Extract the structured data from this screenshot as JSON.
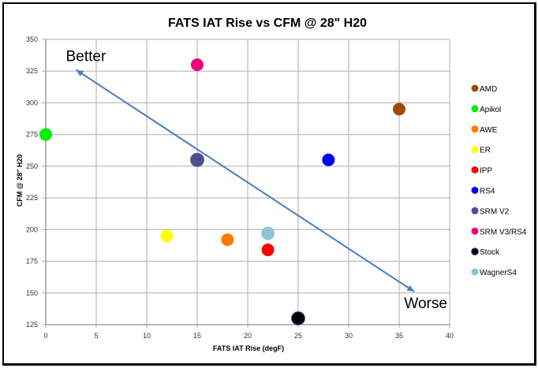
{
  "chart_data": {
    "type": "scatter",
    "title": "FATS IAT Rise vs CFM @ 28\" H20",
    "xlabel": "FATS IAT Rise (degF)",
    "ylabel": "CFM @ 28\" H20",
    "xlim": [
      0,
      40
    ],
    "ylim": [
      125,
      350
    ],
    "xticks": [
      "0",
      "5",
      "10",
      "15",
      "20",
      "25",
      "30",
      "35",
      "40"
    ],
    "yticks": [
      "125",
      "150",
      "175",
      "200",
      "225",
      "250",
      "275",
      "300",
      "325",
      "350"
    ],
    "grid": true,
    "legend_position": "right",
    "series": [
      {
        "name": "AMD",
        "color": "#9c4a06",
        "x": 35,
        "y": 295
      },
      {
        "name": "Apikol",
        "color": "#00ee00",
        "x": 0,
        "y": 275
      },
      {
        "name": "AWE",
        "color": "#ff7a00",
        "x": 18,
        "y": 192
      },
      {
        "name": "ER",
        "color": "#ffff00",
        "x": 12,
        "y": 195
      },
      {
        "name": "IPP",
        "color": "#ff0000",
        "x": 22,
        "y": 184
      },
      {
        "name": "RS4",
        "color": "#0000ff",
        "x": 28,
        "y": 255
      },
      {
        "name": "SRM V2",
        "color": "#4d4d8f",
        "x": 15,
        "y": 255
      },
      {
        "name": "SRM V3/RS4",
        "color": "#ee0077",
        "x": 15,
        "y": 330
      },
      {
        "name": "Stock",
        "color": "#000000",
        "x": 25,
        "y": 130
      },
      {
        "name": "WagnerS4",
        "color": "#92c3d3",
        "x": 22,
        "y": 197
      }
    ],
    "annotations": [
      {
        "text": "Better",
        "x": 2,
        "y": 333
      },
      {
        "text": "Worse",
        "x": 35.5,
        "y": 138
      }
    ],
    "arrow": {
      "from": [
        36.5,
        151
      ],
      "to": [
        3,
        326
      ],
      "bidirectional": true,
      "color": "#4a7ebb"
    }
  }
}
